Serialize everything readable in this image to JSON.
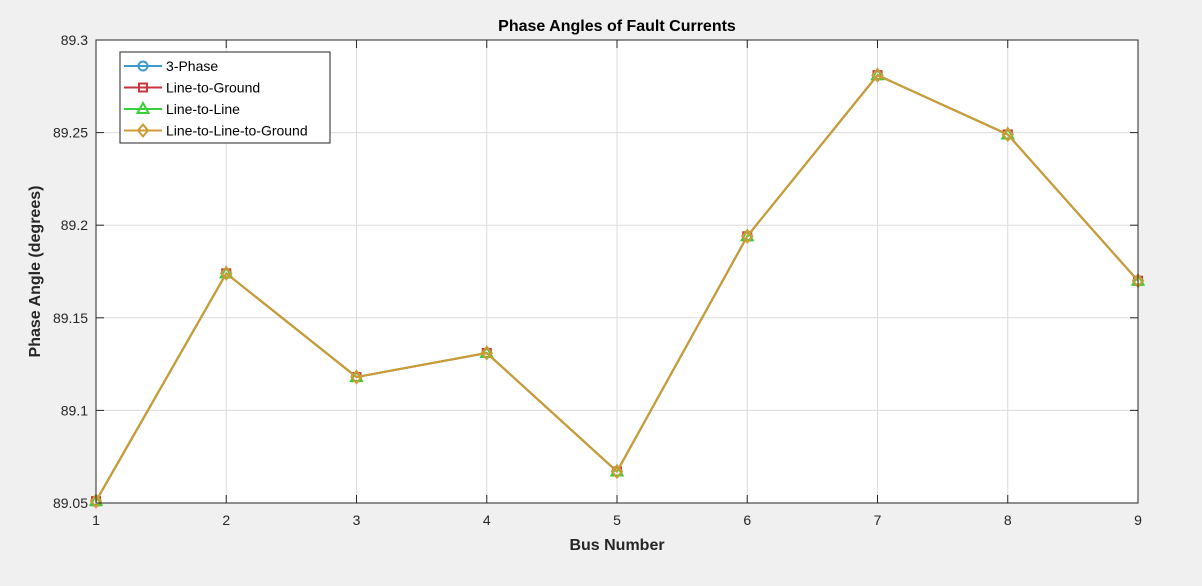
{
  "chart_data": {
    "type": "line",
    "title": "Phase Angles of Fault Currents",
    "xlabel": "Bus Number",
    "ylabel": "Phase Angle (degrees)",
    "x": [
      1,
      2,
      3,
      4,
      5,
      6,
      7,
      8,
      9
    ],
    "xticks": [
      "1",
      "2",
      "3",
      "4",
      "5",
      "6",
      "7",
      "8",
      "9"
    ],
    "yticks": [
      "89.05",
      "89.1",
      "89.15",
      "89.2",
      "89.25",
      "89.3"
    ],
    "xlim": [
      1,
      9
    ],
    "ylim": [
      89.05,
      89.3
    ],
    "grid": true,
    "legend_position": "top-left",
    "series": [
      {
        "name": "3-Phase",
        "color": "#3a9bd1",
        "marker": "circle",
        "values": [
          89.051,
          89.174,
          89.118,
          89.131,
          89.067,
          89.194,
          89.281,
          89.249,
          89.17
        ]
      },
      {
        "name": "Line-to-Ground",
        "color": "#c8353a",
        "marker": "square",
        "values": [
          89.051,
          89.174,
          89.118,
          89.131,
          89.067,
          89.194,
          89.281,
          89.249,
          89.17
        ]
      },
      {
        "name": "Line-to-Line",
        "color": "#38d038",
        "marker": "triangle",
        "values": [
          89.051,
          89.174,
          89.118,
          89.131,
          89.067,
          89.194,
          89.281,
          89.249,
          89.17
        ]
      },
      {
        "name": "Line-to-Line-to-Ground",
        "color": "#d09a35",
        "marker": "diamond",
        "values": [
          89.051,
          89.174,
          89.118,
          89.131,
          89.067,
          89.194,
          89.281,
          89.249,
          89.17
        ]
      }
    ]
  }
}
